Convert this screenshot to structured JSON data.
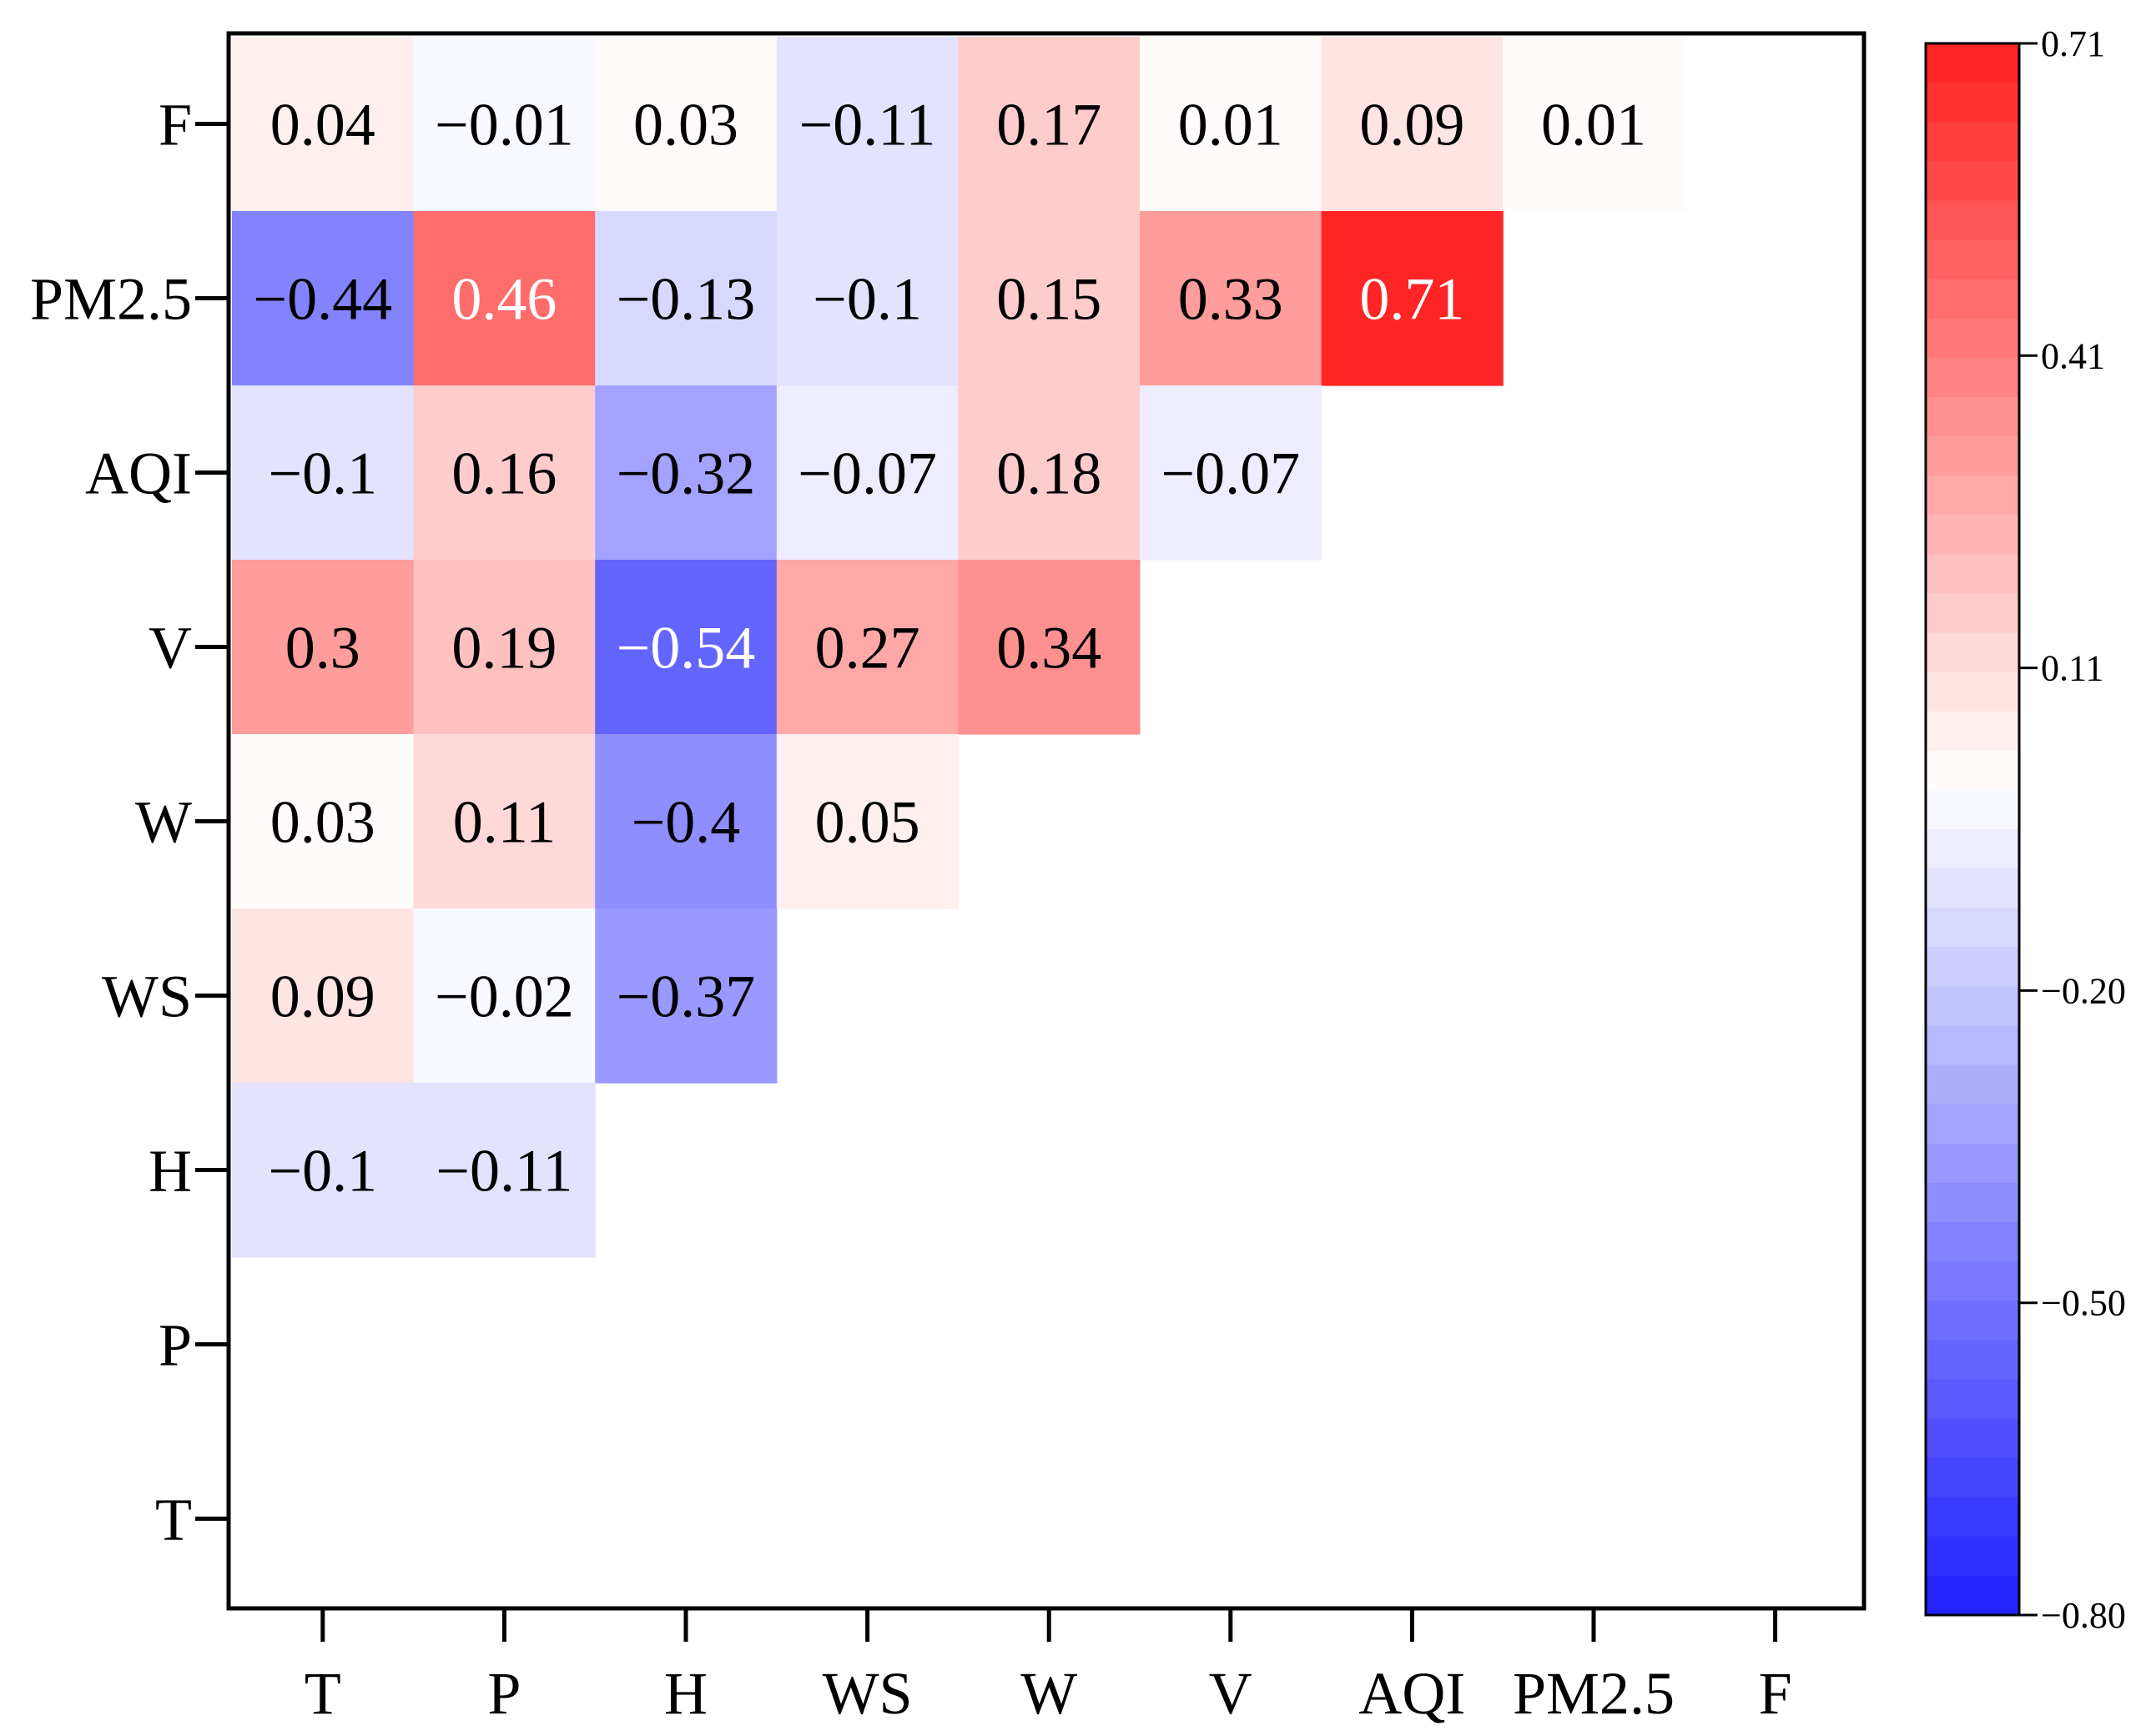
{
  "chart_data": {
    "type": "heatmap",
    "title": "",
    "xlabel": "",
    "ylabel": "",
    "x_labels": [
      "T",
      "P",
      "H",
      "WS",
      "W",
      "V",
      "AQI",
      "PM2.5",
      "F"
    ],
    "y_labels_top_to_bottom": [
      "F",
      "PM2.5",
      "AQI",
      "V",
      "W",
      "WS",
      "H",
      "P",
      "T"
    ],
    "rows": [
      {
        "label": "F",
        "values": [
          "0.04",
          "−0.01",
          "0.03",
          "−0.11",
          "0.17",
          "0.01",
          "0.09",
          "0.01"
        ]
      },
      {
        "label": "PM2.5",
        "values": [
          "−0.44",
          "0.46",
          "−0.13",
          "−0.1",
          "0.15",
          "0.33",
          "0.71"
        ]
      },
      {
        "label": "AQI",
        "values": [
          "−0.1",
          "0.16",
          "−0.32",
          "−0.07",
          "0.18",
          "−0.07"
        ]
      },
      {
        "label": "V",
        "values": [
          "0.3",
          "0.19",
          "−0.54",
          "0.27",
          "0.34"
        ]
      },
      {
        "label": "W",
        "values": [
          "0.03",
          "0.11",
          "−0.4",
          "0.05"
        ]
      },
      {
        "label": "WS",
        "values": [
          "0.09",
          "−0.02",
          "−0.37"
        ]
      },
      {
        "label": "H",
        "values": [
          "−0.1",
          "−0.11"
        ]
      },
      {
        "label": "P",
        "values": []
      },
      {
        "label": "T",
        "values": []
      }
    ],
    "colorbar": {
      "min": -0.8,
      "max": 0.71,
      "ticks": [
        "0.71",
        "0.41",
        "0.11",
        "−0.20",
        "−0.50",
        "−0.80"
      ],
      "tick_values": [
        0.71,
        0.41,
        0.11,
        -0.2,
        -0.5,
        -0.8
      ],
      "colors": {
        "min": "#1f1fff",
        "mid": "#ffffff",
        "max": "#ff1f1f"
      }
    },
    "colors": {
      "dark_text": "#000000",
      "light_text": "#ffffff",
      "frame": "#000000"
    }
  }
}
